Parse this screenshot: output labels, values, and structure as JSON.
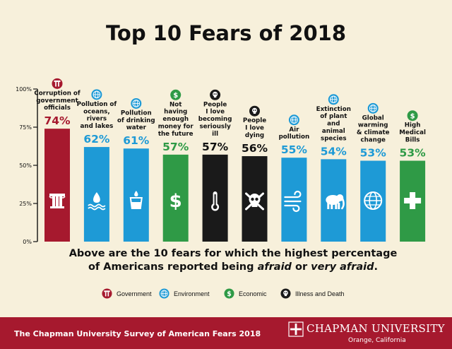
{
  "title": "Top 10 Fears of 2018",
  "caption": {
    "line1": "Above are the 10 fears for which the highest percentage",
    "line2_prefix": "of Americans reported being ",
    "afraid": "afraid",
    "or": " or ",
    "very_afraid": "very afraid",
    "end": "."
  },
  "legend": [
    {
      "label": "Government",
      "color": "#a6192e",
      "icon": "column-icon"
    },
    {
      "label": "Environment",
      "color": "#1e9ad6",
      "icon": "globe-icon"
    },
    {
      "label": "Economic",
      "color": "#2f9a46",
      "icon": "dollar-icon"
    },
    {
      "label": "Illness and Death",
      "color": "#1a1a1a",
      "icon": "skull-icon"
    }
  ],
  "footer": {
    "survey": "The Chapman University Survey of American Fears 2018",
    "university": "CHAPMAN UNIVERSITY",
    "location": "Orange, California"
  },
  "chart_data": {
    "type": "bar",
    "title": "Top 10 Fears of 2018",
    "yticks": [
      "0%",
      "25%",
      "50%",
      "75%",
      "100%"
    ],
    "ylim": [
      0,
      100
    ],
    "categories": [
      "Corruption of government officials",
      "Pollution of oceans, rivers and lakes",
      "Pollution of drinking water",
      "Not having enough money for the future",
      "People I love becoming seriously ill",
      "People I love dying",
      "Air pollution",
      "Extinction of plant and animal species",
      "Global warming & climate change",
      "High Medical Bills"
    ],
    "bars": [
      {
        "label_lines": [
          "Corruption of",
          "government",
          "officials"
        ],
        "value": 74,
        "value_label": "74%",
        "category": "Government",
        "color": "#a6192e",
        "icon": "column-icon"
      },
      {
        "label_lines": [
          "Pollution of",
          "oceans,",
          "rivers",
          "and lakes"
        ],
        "value": 62,
        "value_label": "62%",
        "category": "Environment",
        "color": "#1e9ad6",
        "icon": "water-drop-icon"
      },
      {
        "label_lines": [
          "Pollution",
          "of drinking",
          "water"
        ],
        "value": 61,
        "value_label": "61%",
        "category": "Environment",
        "color": "#1e9ad6",
        "icon": "water-glass-icon"
      },
      {
        "label_lines": [
          "Not",
          "having",
          "enough",
          "money for",
          "the future"
        ],
        "value": 57,
        "value_label": "57%",
        "category": "Economic",
        "color": "#2f9a46",
        "icon": "dollar-icon"
      },
      {
        "label_lines": [
          "People",
          "I love",
          "becoming",
          "seriously",
          "ill"
        ],
        "value": 57,
        "value_label": "57%",
        "category": "Illness and Death",
        "color": "#1a1a1a",
        "icon": "thermometer-icon"
      },
      {
        "label_lines": [
          "People",
          "I love",
          "dying"
        ],
        "value": 56,
        "value_label": "56%",
        "category": "Illness and Death",
        "color": "#1a1a1a",
        "icon": "skull-crossbones-icon"
      },
      {
        "label_lines": [
          "Air",
          "pollution"
        ],
        "value": 55,
        "value_label": "55%",
        "category": "Environment",
        "color": "#1e9ad6",
        "icon": "wind-icon"
      },
      {
        "label_lines": [
          "Extinction",
          "of plant",
          "and",
          "animal",
          "species"
        ],
        "value": 54,
        "value_label": "54%",
        "category": "Environment",
        "color": "#1e9ad6",
        "icon": "elephant-icon"
      },
      {
        "label_lines": [
          "Global",
          "warming",
          "& climate",
          "change"
        ],
        "value": 53,
        "value_label": "53%",
        "category": "Environment",
        "color": "#1e9ad6",
        "icon": "globe-icon"
      },
      {
        "label_lines": [
          "High",
          "Medical",
          "Bills"
        ],
        "value": 53,
        "value_label": "53%",
        "category": "Economic",
        "color": "#2f9a46",
        "icon": "medical-cross-icon"
      }
    ]
  }
}
